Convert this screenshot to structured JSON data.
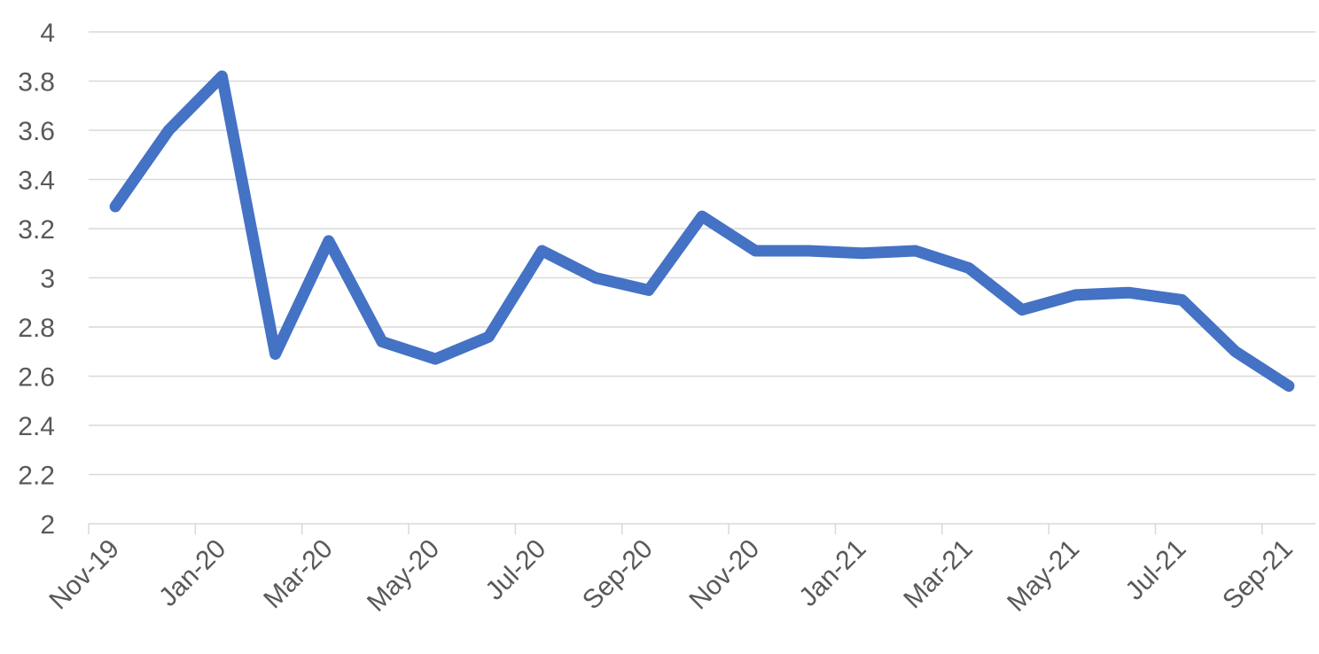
{
  "chart_data": {
    "type": "line",
    "title": "",
    "xlabel": "",
    "ylabel": "",
    "ylim": [
      2,
      4
    ],
    "y_ticks": [
      "2",
      "2.2",
      "2.4",
      "2.6",
      "2.8",
      "3",
      "3.2",
      "3.4",
      "3.6",
      "3.8",
      "4"
    ],
    "x_tick_labels": [
      "Nov-19",
      "Jan-20",
      "Mar-20",
      "May-20",
      "Jul-20",
      "Sep-20",
      "Nov-20",
      "Jan-21",
      "Mar-21",
      "May-21",
      "Jul-21",
      "Sep-21"
    ],
    "grid": true,
    "legend": "none",
    "color": "#4472c4",
    "categories": [
      "Nov-19",
      "Dec-19",
      "Jan-20",
      "Feb-20",
      "Mar-20",
      "Apr-20",
      "May-20",
      "Jun-20",
      "Jul-20",
      "Aug-20",
      "Sep-20",
      "Oct-20",
      "Nov-20",
      "Dec-20",
      "Jan-21",
      "Feb-21",
      "Mar-21",
      "Apr-21",
      "May-21",
      "Jun-21",
      "Jul-21",
      "Aug-21",
      "Sep-21"
    ],
    "series": [
      {
        "values": [
          3.29,
          3.6,
          3.82,
          2.69,
          3.15,
          2.74,
          2.67,
          2.76,
          3.11,
          3.0,
          2.95,
          3.25,
          3.11,
          3.11,
          3.1,
          3.11,
          3.04,
          2.87,
          2.93,
          2.94,
          2.91,
          2.7,
          2.56
        ]
      }
    ]
  }
}
